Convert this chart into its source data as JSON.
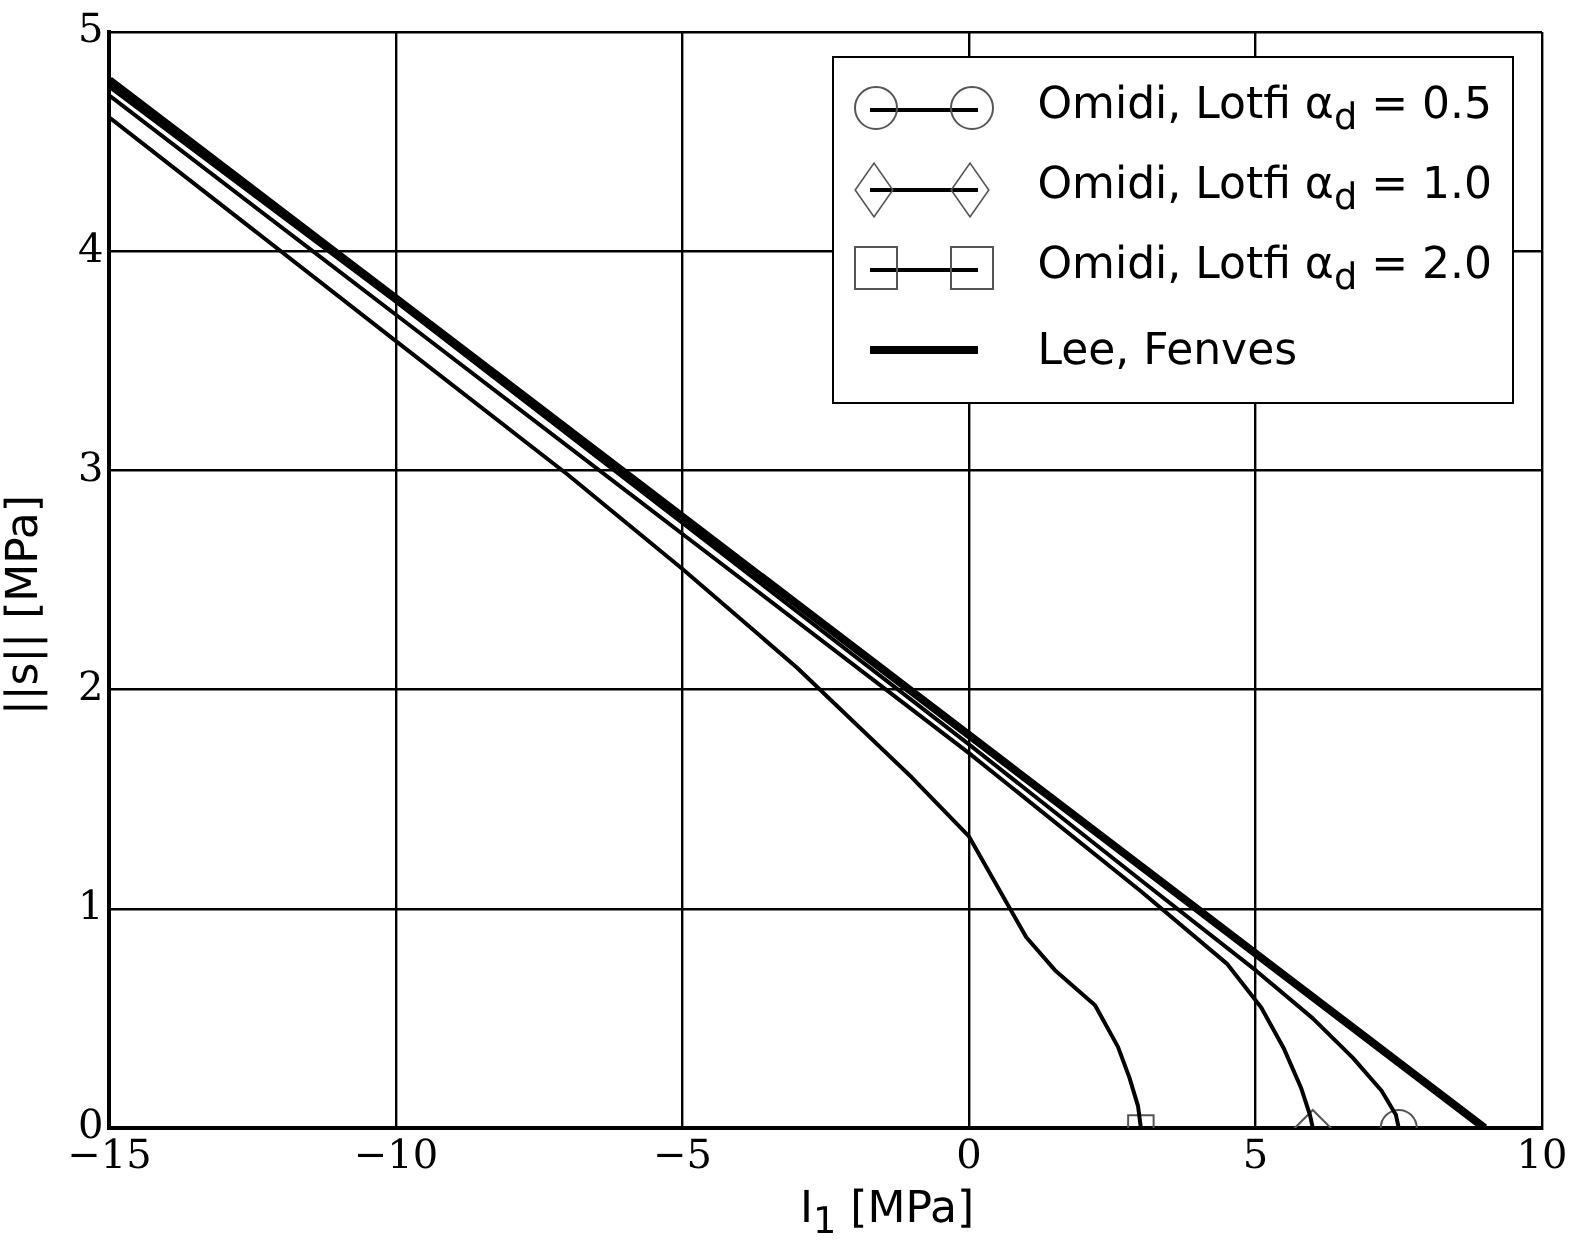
{
  "chart_data": {
    "type": "line",
    "xlabel": "I$_{1}$ [MPa]",
    "ylabel": "||s|| [MPa]",
    "xlim": [
      -15,
      10
    ],
    "xticks": [
      {
        "value": -15,
        "label": "−15"
      },
      {
        "value": -10,
        "label": "−10"
      },
      {
        "value": -5,
        "label": "−5"
      },
      0,
      5,
      10
    ],
    "ylim": [
      0,
      5
    ],
    "yticks": [
      0,
      1,
      2,
      3,
      4,
      5
    ],
    "grid": true,
    "legend": "top right",
    "line_style": "solid",
    "series": [
      {
        "name": "Omidi, Lotfi α$_{d}$ = 0.5",
        "color": "#000000",
        "marker": "none",
        "x": [
          -15,
          -10,
          -5,
          0,
          3,
          5,
          6,
          6.7,
          7.2,
          7.45,
          7.5
        ],
        "values": [
          4.75,
          3.77,
          2.76,
          1.75,
          1.13,
          0.72,
          0.5,
          0.32,
          0.17,
          0.06,
          0
        ]
      },
      {
        "name": "Omidi, Lotfi α$_{d}$ = 1.0",
        "color": "#000000",
        "marker": "none",
        "x": [
          -15,
          -10,
          -5,
          0,
          3,
          4.5,
          5.1,
          5.5,
          5.8,
          5.95,
          6
        ],
        "values": [
          4.71,
          3.71,
          2.71,
          1.71,
          1.08,
          0.75,
          0.55,
          0.36,
          0.18,
          0.06,
          0
        ]
      },
      {
        "name": "Omidi, Lotfi α$_{d}$ = 2.0",
        "color": "#000000",
        "marker": "none",
        "x": [
          -15,
          -10,
          -7,
          -5,
          -3,
          -1,
          0,
          1,
          1.5,
          2.2,
          2.6,
          2.8,
          2.95,
          3
        ],
        "values": [
          4.61,
          3.59,
          2.98,
          2.55,
          2.1,
          1.6,
          1.33,
          0.87,
          0.72,
          0.56,
          0.37,
          0.23,
          0.1,
          0
        ]
      },
      {
        "name": "Lee, Fenves",
        "color": "#000000",
        "marker": "none",
        "x": [
          -15,
          9
        ],
        "values": [
          4.78,
          0
        ]
      },
      {
        "type": "scatter",
        "color": "#555555",
        "marker": "circle",
        "x": [
          7.5
        ],
        "values": [
          0
        ]
      },
      {
        "type": "scatter",
        "color": "#555555",
        "marker": "diamond",
        "x": [
          6
        ],
        "values": [
          0
        ]
      },
      {
        "type": "scatter",
        "color": "#555555",
        "marker": "square",
        "x": [
          3
        ],
        "values": [
          0
        ]
      }
    ]
  }
}
